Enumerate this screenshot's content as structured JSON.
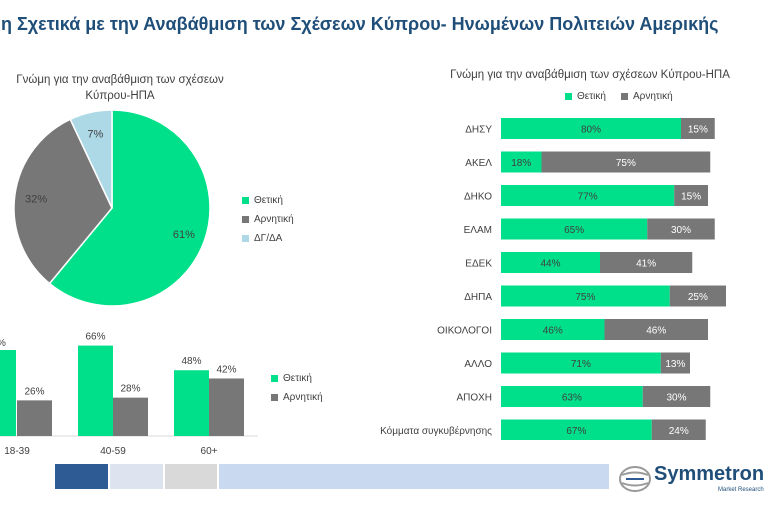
{
  "page": {
    "title": "μη Σχετικά με την Αναβάθμιση των Σχέσεων Κύπρου- Ηνωμένων Πολιτειών Αμερικής"
  },
  "colors": {
    "positive": "#00e08a",
    "negative": "#777777",
    "dkna": "#add8e6",
    "title": "#1f4e79"
  },
  "pie": {
    "title_line1": "Γνώμη για την αναβάθμιση των σχέσεων",
    "title_line2": "Κύπρου-ΗΠΑ",
    "legend": [
      "Θετική",
      "Αρνητική",
      "ΔΓ/ΔΑ"
    ]
  },
  "age": {
    "legend": [
      "Θετική",
      "Αρνητική"
    ],
    "cut_label": "%"
  },
  "party": {
    "title": "Γνώμη για την αναβάθμιση των σχέσεων Κύπρου-ΗΠΑ",
    "legend": [
      "Θετική",
      "Αρνητική"
    ]
  },
  "logo": {
    "name": "Symmetron",
    "sub": "Market Research"
  },
  "chart_data": [
    {
      "type": "pie",
      "title": "Γνώμη για την αναβάθμιση των σχέσεων Κύπρου-ΗΠΑ",
      "labels": [
        "Θετική",
        "Αρνητική",
        "ΔΓ/ΔΑ"
      ],
      "values": [
        61,
        32,
        7
      ],
      "value_labels": [
        "61%",
        "32%",
        "7%"
      ],
      "legend_position": "right"
    },
    {
      "type": "bar",
      "categories": [
        "18-39",
        "40-59",
        "60+"
      ],
      "series": [
        {
          "name": "Θετική",
          "values": [
            null,
            66,
            48
          ]
        },
        {
          "name": "Αρνητική",
          "values": [
            26,
            28,
            42
          ]
        }
      ],
      "value_labels": {
        "Θετική": [
          "",
          "66%",
          "48%"
        ],
        "Αρνητική": [
          "26%",
          "28%",
          "42%"
        ]
      },
      "ylim": [
        0,
        70
      ],
      "legend_position": "right",
      "grid": false
    },
    {
      "type": "bar",
      "orientation": "horizontal",
      "stacked": true,
      "title": "Γνώμη για την αναβάθμιση των σχέσεων Κύπρου-ΗΠΑ",
      "categories": [
        "ΔΗΣΥ",
        "ΑΚΕΛ",
        "ΔΗΚΟ",
        "ΕΛΑΜ",
        "ΕΔΕΚ",
        "ΔΗΠΑ",
        "ΟΙΚΟΛΟΓΟΙ",
        "ΑΛΛΟ",
        "ΑΠΟΧΗ",
        "Κόμματα συγκυβέρνησης"
      ],
      "series": [
        {
          "name": "Θετική",
          "values": [
            80,
            18,
            77,
            65,
            44,
            75,
            46,
            71,
            63,
            67
          ]
        },
        {
          "name": "Αρνητική",
          "values": [
            15,
            75,
            15,
            30,
            41,
            25,
            46,
            13,
            30,
            24
          ]
        }
      ],
      "xlim": [
        0,
        100
      ],
      "legend_position": "top",
      "grid": false
    }
  ]
}
